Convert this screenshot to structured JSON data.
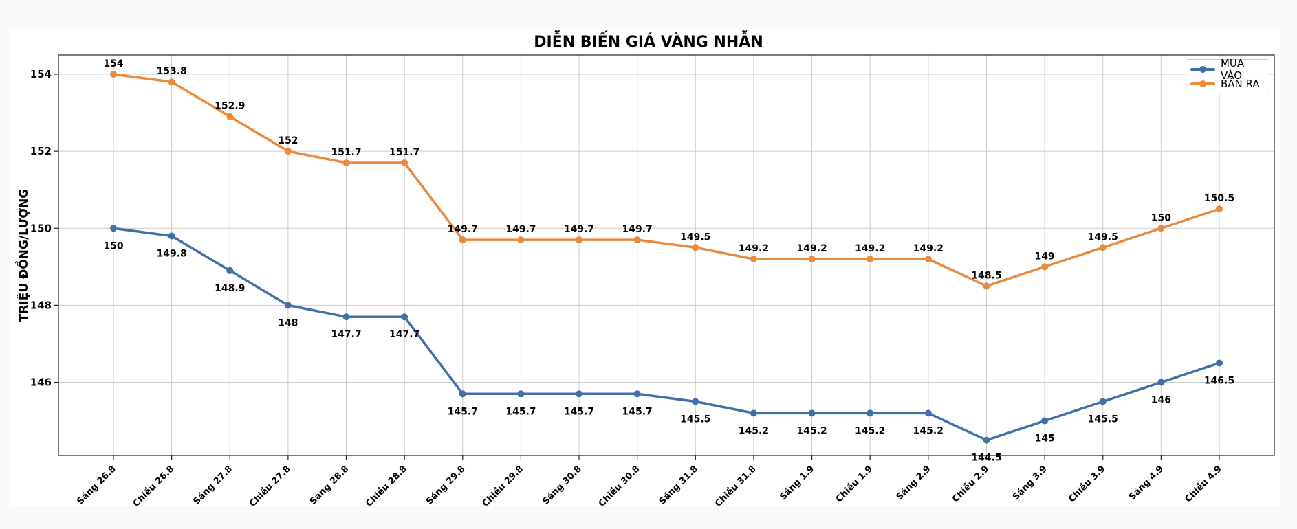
{
  "colors": {
    "mua_vao": "#4070a8",
    "ban_ra": "#ea8a3d",
    "grid": "#cccccc",
    "axis": "#222222"
  },
  "chart_data": {
    "type": "line",
    "title": "DIỄN BIẾN GIÁ VÀNG NHẪN",
    "xlabel": "",
    "ylabel": "TRIỆU ĐỒNG/LƯỢNG",
    "ylim": [
      144.1,
      154.5
    ],
    "yticks": [
      146,
      148,
      150,
      152,
      154
    ],
    "grid": true,
    "legend_position": "top-right",
    "categories": [
      "Sáng 26.8",
      "Chiều 26.8",
      "Sáng 27.8",
      "Chiều 27.8",
      "Sáng 28.8",
      "Chiều 28.8",
      "Sáng 29.8",
      "Chiều 29.8",
      "Sáng 30.8",
      "Chiều 30.8",
      "Sáng 31.8",
      "Chiều 31.8",
      "Sáng 1.9",
      "Chiều 1.9",
      "Sáng 2.9",
      "Chiều 2.9",
      "Sáng 3.9",
      "Chiều 3.9",
      "Sáng 4.9",
      "Chiều 4.9"
    ],
    "series": [
      {
        "name": "MUA VÀO",
        "values": [
          150,
          149.8,
          148.9,
          148,
          147.7,
          147.7,
          145.7,
          145.7,
          145.7,
          145.7,
          145.5,
          145.2,
          145.2,
          145.2,
          145.2,
          144.5,
          145,
          145.5,
          146,
          146.5
        ],
        "labels": [
          "150",
          "149.8",
          "148.9",
          "148",
          "147.7",
          "147.7",
          "145.7",
          "145.7",
          "145.7",
          "145.7",
          "145.5",
          "145.2",
          "145.2",
          "145.2",
          "145.2",
          "144.5",
          "145",
          "145.5",
          "146",
          "146.5"
        ]
      },
      {
        "name": "BÁN RA",
        "values": [
          154,
          153.8,
          152.9,
          152,
          151.7,
          151.7,
          149.7,
          149.7,
          149.7,
          149.7,
          149.5,
          149.2,
          149.2,
          149.2,
          149.2,
          148.5,
          149,
          149.5,
          150,
          150.5
        ],
        "labels": [
          "154",
          "153.8",
          "152.9",
          "152",
          "151.7",
          "151.7",
          "149.7",
          "149.7",
          "149.7",
          "149.7",
          "149.5",
          "149.2",
          "149.2",
          "149.2",
          "149.2",
          "148.5",
          "149",
          "149.5",
          "150",
          "150.5"
        ]
      }
    ]
  }
}
